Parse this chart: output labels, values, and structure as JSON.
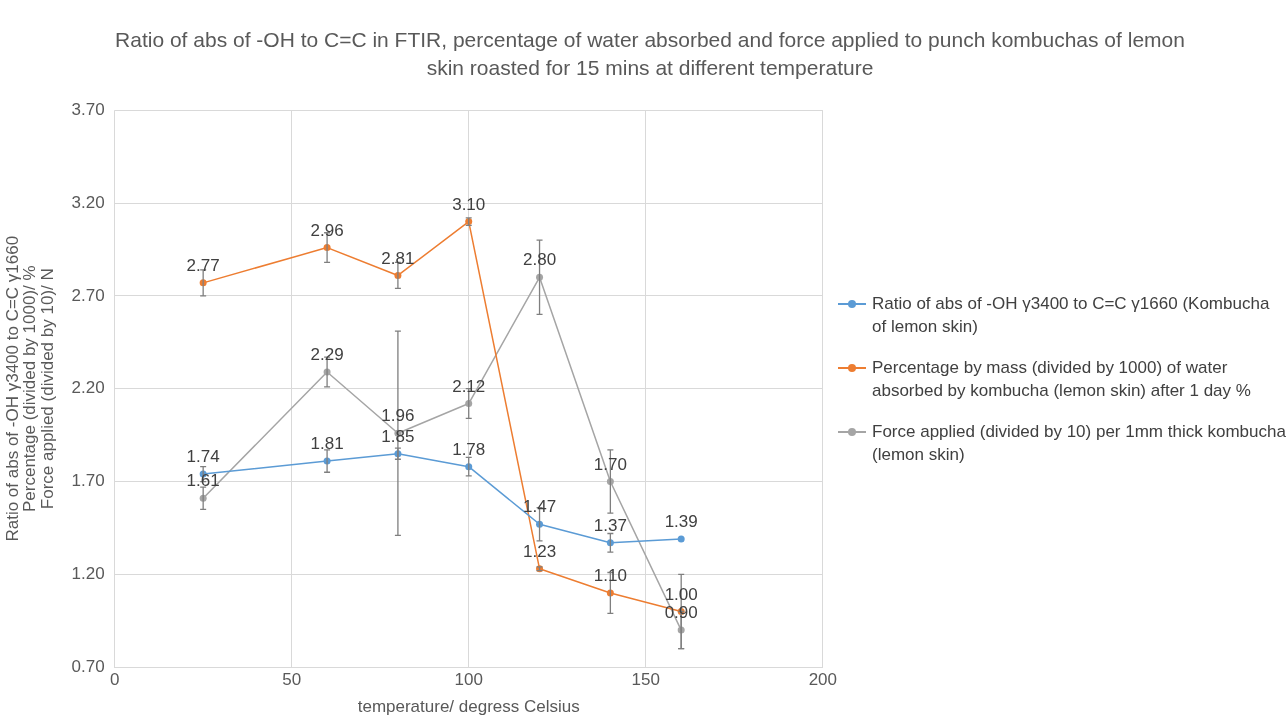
{
  "chart_data": {
    "type": "line",
    "title": "Ratio of abs of -OH to C=C in FTIR, percentage of water absorbed and force applied to punch kombuchas of lemon skin roasted for 15 mins at different temperature",
    "xlabel": "temperature/ degress Celsius",
    "ylabel": "Ratio of abs of -OH γ3400 to C=C γ1660\nPercentage (divided by 1000)/ %\nForce applied (divided by 10)/ N",
    "x": [
      25,
      60,
      80,
      100,
      120,
      140,
      160
    ],
    "series": [
      {
        "name": "Ratio of abs of -OH γ3400 to C=C γ1660 (Kombucha of lemon skin)",
        "color": "#5b9bd5",
        "values": [
          1.74,
          1.81,
          1.85,
          1.78,
          1.47,
          1.37,
          1.39
        ],
        "errors": [
          0.04,
          0.06,
          0.03,
          0.05,
          0.09,
          0.05,
          null
        ],
        "value_labels": [
          "1.74",
          "1.81",
          "1.85",
          "1.78",
          "1.47",
          "1.37",
          "1.39"
        ]
      },
      {
        "name": "Percentage by mass (divided by 1000) of water absorbed by kombucha (lemon skin) after 1 day %",
        "color": "#ed7d31",
        "values": [
          2.77,
          2.96,
          2.81,
          3.1,
          1.23,
          1.1,
          1.0
        ],
        "errors": [
          0.07,
          0.08,
          0.07,
          0.02,
          0.01,
          0.11,
          0.2
        ],
        "value_labels": [
          "2.77",
          "2.96",
          "2.81",
          "3.10",
          "1.23",
          "1.10",
          "1.00"
        ]
      },
      {
        "name": "Force applied (divided by 10) per 1mm thick kombucha (lemon skin)",
        "color": "#a5a5a5",
        "values": [
          1.61,
          2.29,
          1.96,
          2.12,
          2.8,
          1.7,
          0.9
        ],
        "errors": [
          0.06,
          0.08,
          0.55,
          0.08,
          0.2,
          0.17,
          0.1
        ],
        "value_labels": [
          "1.61",
          "2.29",
          "1.96",
          "2.12",
          "2.80",
          "1.70",
          "0.90"
        ]
      }
    ],
    "xlim": [
      0,
      200
    ],
    "xticks": [
      0,
      50,
      100,
      150,
      200
    ],
    "ylim": [
      0.7,
      3.7
    ],
    "yticks": [
      {
        "value": 0.7,
        "label": "0.70"
      },
      {
        "value": 1.2,
        "label": "1.20"
      },
      {
        "value": 1.7,
        "label": "1.70"
      },
      {
        "value": 2.2,
        "label": "2.20"
      },
      {
        "value": 2.7,
        "label": "2.70"
      },
      {
        "value": 3.2,
        "label": "3.20"
      },
      {
        "value": 3.7,
        "label": "3.70"
      }
    ],
    "grid": true,
    "legend": "right",
    "marker": "circle",
    "line_style": "solid"
  }
}
